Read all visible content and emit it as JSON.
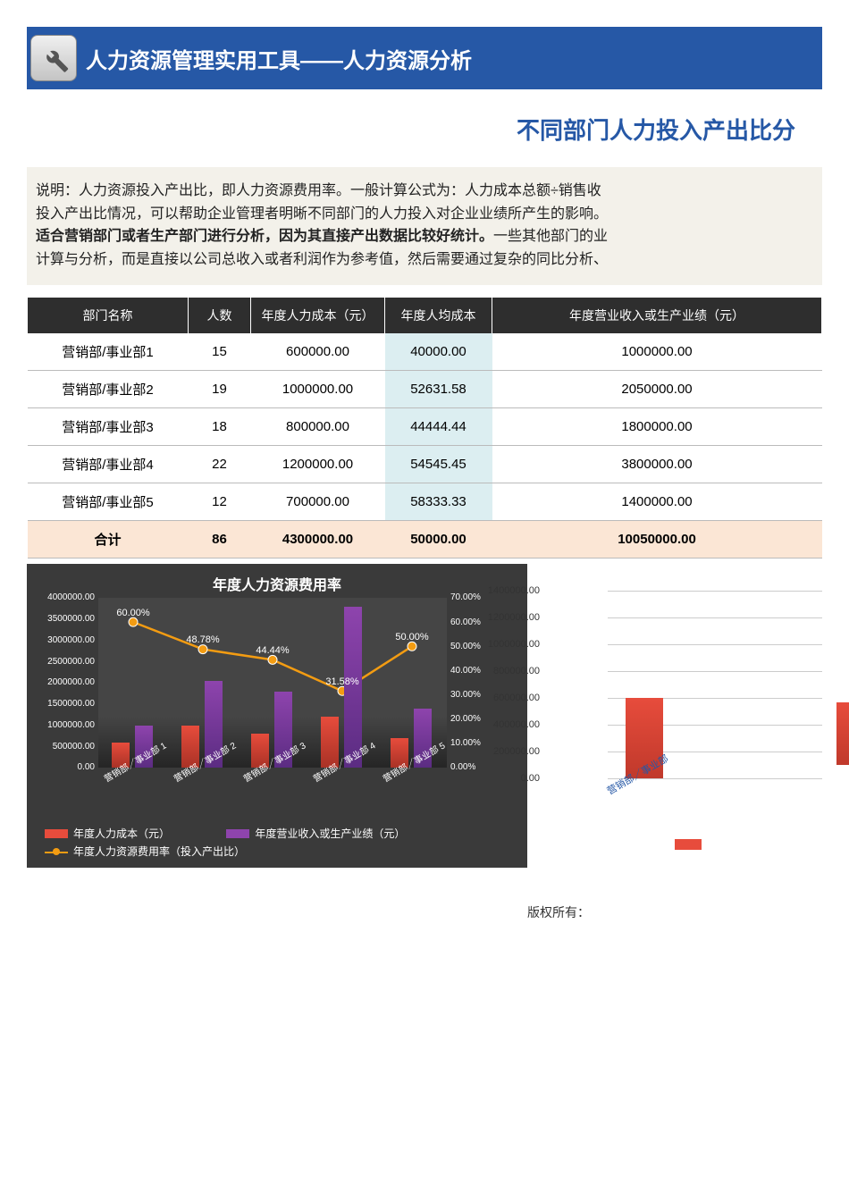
{
  "header": {
    "title": "人力资源管理实用工具——人力资源分析"
  },
  "subtitle": "不同部门人力投入产出比分",
  "desc": {
    "l1": "说明：人力资源投入产出比，即人力资源费用率。一般计算公式为：人力成本总额÷销售收",
    "l2": "投入产出比情况，可以帮助企业管理者明晰不同部门的人力投入对企业业绩所产生的影响。",
    "l3a": "适合营销部门或者生产部门进行分析，因为其直接产出数据比较好统计。",
    "l3b": "一些其他部门的业",
    "l4": "计算与分析，而是直接以公司总收入或者利润作为参考值，然后需要通过复杂的同比分析、"
  },
  "table": {
    "columns": [
      "部门名称",
      "人数",
      "年度人力成本（元）",
      "年度人均成本",
      "年度营业收入或生产业绩（元）"
    ],
    "rows": [
      {
        "dept": "营销部/事业部1",
        "count": "15",
        "cost": "600000.00",
        "avg": "40000.00",
        "rev": "1000000.00"
      },
      {
        "dept": "营销部/事业部2",
        "count": "19",
        "cost": "1000000.00",
        "avg": "52631.58",
        "rev": "2050000.00"
      },
      {
        "dept": "营销部/事业部3",
        "count": "18",
        "cost": "800000.00",
        "avg": "44444.44",
        "rev": "1800000.00"
      },
      {
        "dept": "营销部/事业部4",
        "count": "22",
        "cost": "1200000.00",
        "avg": "54545.45",
        "rev": "3800000.00"
      },
      {
        "dept": "营销部/事业部5",
        "count": "12",
        "cost": "700000.00",
        "avg": "58333.33",
        "rev": "1400000.00"
      }
    ],
    "total": {
      "label": "合计",
      "count": "86",
      "cost": "4300000.00",
      "avg": "50000.00",
      "rev": "10050000.00"
    }
  },
  "chart1": {
    "title": "年度人力资源费用率",
    "type": "combo-bar-line",
    "background": "#3a3a3a",
    "plot_bg": "#454545",
    "bar_colors": {
      "cost": "#e74c3c",
      "rev": "#8e44ad"
    },
    "line_color": "#f39c12",
    "categories": [
      "营销部／事业部 1",
      "营销部／事业部 2",
      "营销部／事业部 3",
      "营销部／事业部 4",
      "营销部／事业部 5"
    ],
    "cost_values": [
      600000,
      1000000,
      800000,
      1200000,
      700000
    ],
    "rev_values": [
      1000000,
      2050000,
      1800000,
      3800000,
      1400000
    ],
    "pct_values": [
      60.0,
      48.78,
      44.44,
      31.58,
      50.0
    ],
    "pct_labels": [
      "60.00%",
      "48.78%",
      "44.44%",
      "31.58%",
      "50.00%"
    ],
    "y1_ticks": [
      "0.00",
      "500000.00",
      "1000000.00",
      "1500000.00",
      "2000000.00",
      "2500000.00",
      "3000000.00",
      "3500000.00",
      "4000000.00"
    ],
    "y1_max": 4000000,
    "y2_ticks": [
      "0.00%",
      "10.00%",
      "20.00%",
      "30.00%",
      "40.00%",
      "50.00%",
      "60.00%",
      "70.00%"
    ],
    "y2_max": 70,
    "legend": {
      "cost": "年度人力成本（元）",
      "rev": "年度营业收入或生产业绩（元）",
      "line": "年度人力资源费用率（投入产出比）"
    }
  },
  "chart2": {
    "type": "bar",
    "bar_color": "#e74c3c",
    "y_ticks": [
      "0.00",
      "200000.00",
      "400000.00",
      "600000.00",
      "800000.00",
      "1000000.00",
      "1200000.00",
      "1400000.00"
    ],
    "y_max": 1400000,
    "grid_color": "#cccccc",
    "categories": [
      "营销部／事业部"
    ],
    "values": [
      600000
    ]
  },
  "copyright": "版权所有："
}
